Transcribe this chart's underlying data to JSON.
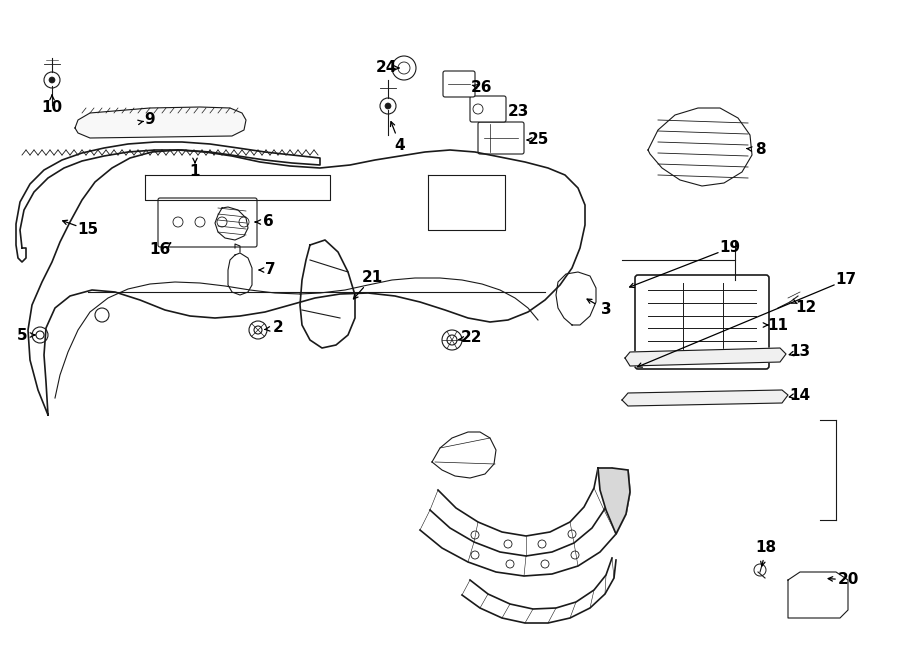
{
  "background_color": "#ffffff",
  "line_color": "#1a1a1a",
  "text_color": "#000000",
  "fig_width": 9.0,
  "fig_height": 6.61,
  "dpi": 100
}
